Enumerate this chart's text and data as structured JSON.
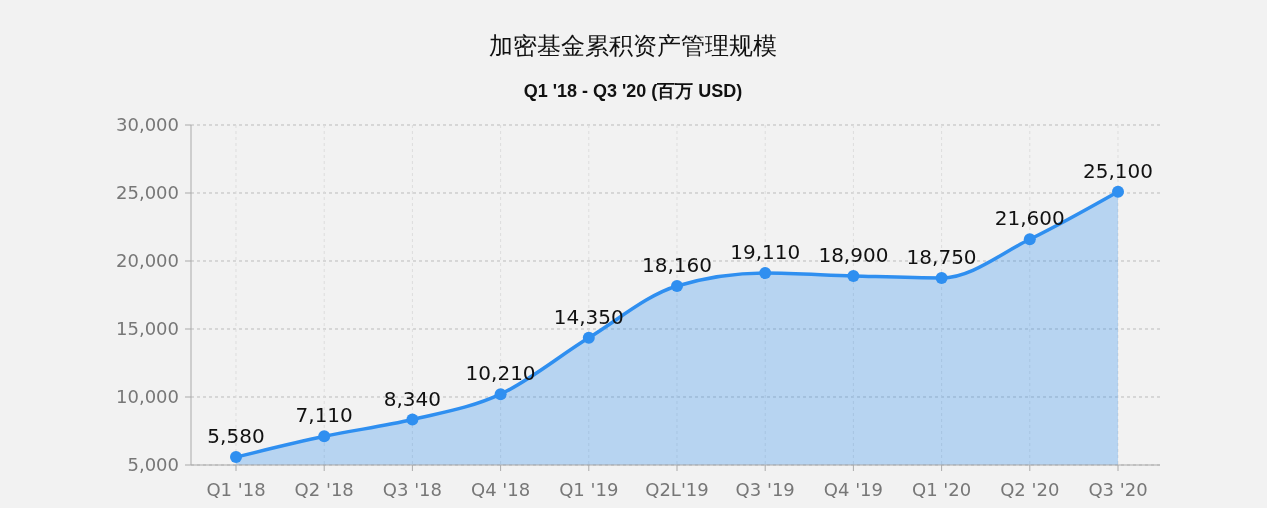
{
  "chart_data": {
    "type": "area",
    "title": "加密基金累积资产管理规模",
    "subtitle": "Q1 '18 - Q3 '20 (百万 USD)",
    "categories": [
      "Q1 '18",
      "Q2 '18",
      "Q3 '18",
      "Q4 '18",
      "Q1 '19",
      "Q2L'19",
      "Q3 '19",
      "Q4 '19",
      "Q1 '20",
      "Q2 '20",
      "Q3 '20"
    ],
    "series": [
      {
        "color": "#2f8ff0",
        "values": [
          5580,
          7110,
          8340,
          10210,
          14350,
          18160,
          19110,
          18900,
          18750,
          21600,
          25100
        ],
        "value_labels": [
          "5,580",
          "7,110",
          "8,340",
          "10,210",
          "14,350",
          "18,160",
          "19,110",
          "18,900",
          "18,750",
          "21,600",
          "25,100"
        ]
      }
    ],
    "ylim": [
      5000,
      30000
    ],
    "yticks": [
      {
        "value": 5000,
        "label": "5,000"
      },
      {
        "value": 10000,
        "label": "10,000"
      },
      {
        "value": 15000,
        "label": "15,000"
      },
      {
        "value": 20000,
        "label": "20,000"
      },
      {
        "value": 25000,
        "label": "25,000"
      },
      {
        "value": 30000,
        "label": "30,000"
      }
    ],
    "grid": true,
    "marker": "circle"
  }
}
